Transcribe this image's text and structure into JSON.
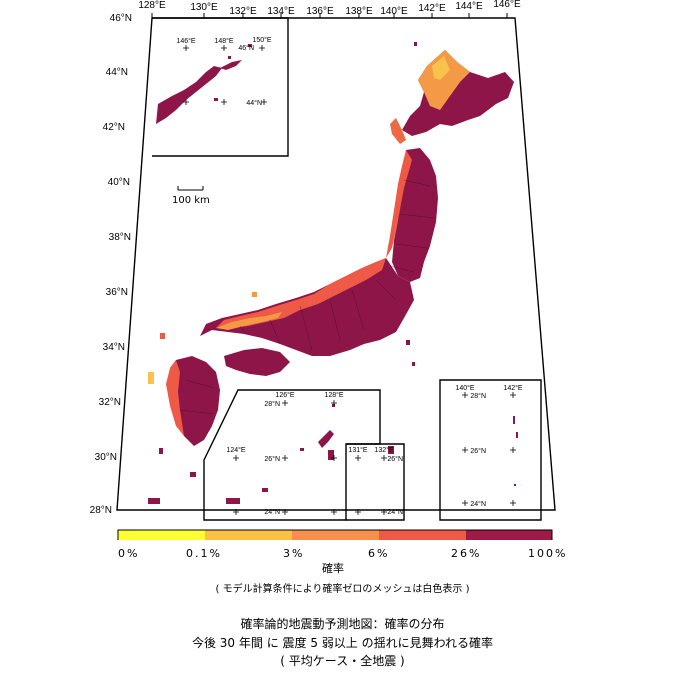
{
  "lon_labels": [
    "128°E",
    "130°E",
    "132°E",
    "134°E",
    "136°E",
    "138°E",
    "140°E",
    "142°E",
    "144°E",
    "146°E"
  ],
  "lat_labels": [
    "46°N",
    "44°N",
    "42°N",
    "40°N",
    "38°N",
    "36°N",
    "34°N",
    "32°N",
    "30°N",
    "28°N"
  ],
  "scale_bar_label": "100 km",
  "insets": {
    "north": {
      "labels": [
        "146°E",
        "148°E",
        "150°E",
        "46°N",
        "44°N"
      ]
    },
    "south": {
      "labels": [
        "126°E",
        "128°E",
        "28°N",
        "124°E",
        "26°N",
        "24°N"
      ]
    },
    "daito": {
      "labels": [
        "131°E",
        "132°E",
        "26°N",
        "24°N"
      ]
    },
    "ogasawara": {
      "labels": [
        "140°E",
        "142°E",
        "28°N",
        "26°N",
        "24°N"
      ]
    }
  },
  "colorbar": {
    "labels": [
      "0%",
      "0.1%",
      "3%",
      "6%",
      "26%",
      "100%"
    ],
    "unit": "確率",
    "colors": [
      "#ffff33",
      "#fbc146",
      "#f7904a",
      "#ee5a45",
      "#9e1a47"
    ]
  },
  "note": "( モデル計算条件により確率ゼロのメッシュは白色表示 )",
  "title": {
    "line1": "確率論的地震動予測地図：確率の分布",
    "line2": "今後 30 年間 に 震度 5 弱以上 の揺れに見舞われる確率",
    "line3": "( 平均ケース・全地震 )"
  }
}
